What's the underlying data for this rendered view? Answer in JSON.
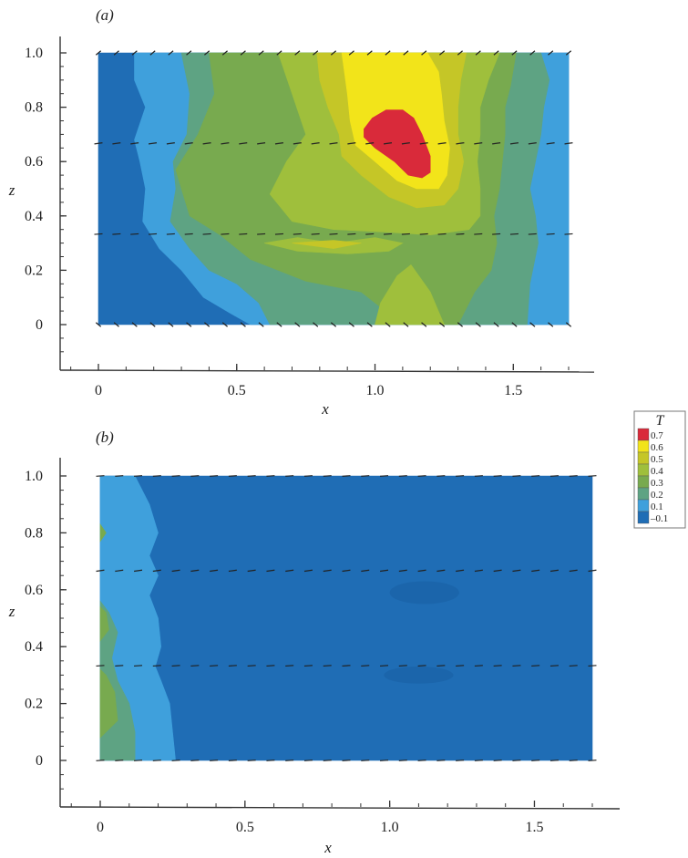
{
  "colors": {
    "c_m01": "#1f6db5",
    "c_01": "#3fa0dc",
    "c_02": "#5ea383",
    "c_03": "#78aa4f",
    "c_04": "#9fbf3c",
    "c_05": "#c5c627",
    "c_06": "#f2e41a",
    "c_07": "#d92a3a",
    "vector": "#222222",
    "axis": "#333333"
  },
  "legend": {
    "title": "T",
    "levels": [
      "0.7",
      "0.6",
      "0.5",
      "0.4",
      "0.3",
      "0.2",
      "0.1",
      "–0.1"
    ],
    "color_keys": [
      "c_07",
      "c_06",
      "c_05",
      "c_04",
      "c_03",
      "c_02",
      "c_01",
      "c_m01"
    ]
  },
  "chart_data": [
    {
      "type": "heatmap",
      "panel_label": "(a)",
      "xlabel": "x",
      "ylabel": "z",
      "xlim": [
        -0.12,
        1.75
      ],
      "ylim": [
        -0.17,
        1.06
      ],
      "xticks": [
        "0",
        "0.5",
        "1.0",
        "1.5"
      ],
      "yticks": [
        "0",
        "0.2",
        "0.4",
        "0.6",
        "0.8",
        "1.0"
      ],
      "xtick_values": [
        0,
        0.5,
        1.0,
        1.5
      ],
      "ytick_values": [
        0,
        0.2,
        0.4,
        0.6,
        0.8,
        1.0
      ],
      "domain": {
        "x": [
          0,
          1.7
        ],
        "z": [
          0,
          1.0
        ]
      },
      "contour_regions": [
        {
          "level": "-0.1",
          "color_key": "c_m01",
          "points": [
            [
              0,
              0
            ],
            [
              1.7,
              0
            ],
            [
              1.7,
              1
            ],
            [
              0,
              1
            ]
          ]
        },
        {
          "level": "0.1",
          "color_key": "c_01",
          "points": [
            [
              0.13,
              1
            ],
            [
              1.7,
              1
            ],
            [
              1.7,
              0
            ],
            [
              0.55,
              0
            ],
            [
              0.48,
              0.04
            ],
            [
              0.38,
              0.1
            ],
            [
              0.3,
              0.2
            ],
            [
              0.22,
              0.28
            ],
            [
              0.16,
              0.38
            ],
            [
              0.17,
              0.5
            ],
            [
              0.15,
              0.6
            ],
            [
              0.13,
              0.68
            ],
            [
              0.17,
              0.8
            ],
            [
              0.13,
              0.9
            ]
          ]
        },
        {
          "level": "0.2",
          "color_key": "c_02",
          "points": [
            [
              0.3,
              1
            ],
            [
              1.6,
              1
            ],
            [
              1.63,
              0.9
            ],
            [
              1.61,
              0.8
            ],
            [
              1.6,
              0.7
            ],
            [
              1.58,
              0.6
            ],
            [
              1.56,
              0.5
            ],
            [
              1.58,
              0.4
            ],
            [
              1.59,
              0.3
            ],
            [
              1.56,
              0.15
            ],
            [
              1.55,
              0
            ],
            [
              0.62,
              0
            ],
            [
              0.58,
              0.08
            ],
            [
              0.5,
              0.15
            ],
            [
              0.4,
              0.2
            ],
            [
              0.33,
              0.28
            ],
            [
              0.26,
              0.38
            ],
            [
              0.28,
              0.5
            ],
            [
              0.27,
              0.6
            ],
            [
              0.32,
              0.7
            ],
            [
              0.33,
              0.85
            ]
          ]
        },
        {
          "level": "0.3",
          "color_key": "c_03",
          "points": [
            [
              0.4,
              1
            ],
            [
              1.51,
              1
            ],
            [
              1.49,
              0.88
            ],
            [
              1.47,
              0.8
            ],
            [
              1.47,
              0.7
            ],
            [
              1.46,
              0.6
            ],
            [
              1.45,
              0.5
            ],
            [
              1.43,
              0.4
            ],
            [
              1.44,
              0.3
            ],
            [
              1.42,
              0.2
            ],
            [
              1.36,
              0.12
            ],
            [
              1.3,
              0
            ],
            [
              1.1,
              0
            ],
            [
              0.95,
              0.12
            ],
            [
              0.75,
              0.16
            ],
            [
              0.55,
              0.24
            ],
            [
              0.44,
              0.33
            ],
            [
              0.33,
              0.4
            ],
            [
              0.3,
              0.5
            ],
            [
              0.28,
              0.57
            ],
            [
              0.36,
              0.7
            ],
            [
              0.42,
              0.85
            ]
          ]
        },
        {
          "level": "0.4",
          "color_key": "c_04",
          "points": [
            [
              0.65,
              1
            ],
            [
              1.45,
              1
            ],
            [
              1.41,
              0.9
            ],
            [
              1.38,
              0.8
            ],
            [
              1.38,
              0.7
            ],
            [
              1.37,
              0.6
            ],
            [
              1.38,
              0.5
            ],
            [
              1.38,
              0.4
            ],
            [
              1.34,
              0.35
            ],
            [
              1.2,
              0.33
            ],
            [
              1.05,
              0.34
            ],
            [
              0.85,
              0.35
            ],
            [
              0.7,
              0.38
            ],
            [
              0.62,
              0.48
            ],
            [
              0.68,
              0.6
            ],
            [
              0.75,
              0.7
            ],
            [
              0.7,
              0.85
            ]
          ]
        },
        {
          "level": "0.4",
          "color_key": "c_04",
          "points": [
            [
              0.6,
              0.3
            ],
            [
              0.72,
              0.32
            ],
            [
              0.85,
              0.3
            ],
            [
              1.0,
              0.32
            ],
            [
              1.1,
              0.3
            ],
            [
              1.05,
              0.27
            ],
            [
              0.9,
              0.26
            ],
            [
              0.72,
              0.27
            ]
          ]
        },
        {
          "level": "0.4",
          "color_key": "c_04",
          "points": [
            [
              1.0,
              0
            ],
            [
              1.25,
              0
            ],
            [
              1.2,
              0.12
            ],
            [
              1.13,
              0.22
            ],
            [
              1.08,
              0.18
            ],
            [
              1.02,
              0.08
            ]
          ]
        },
        {
          "level": "0.5",
          "color_key": "c_05",
          "points": [
            [
              0.79,
              1
            ],
            [
              1.33,
              1
            ],
            [
              1.31,
              0.9
            ],
            [
              1.3,
              0.8
            ],
            [
              1.3,
              0.7
            ],
            [
              1.32,
              0.6
            ],
            [
              1.3,
              0.5
            ],
            [
              1.25,
              0.44
            ],
            [
              1.15,
              0.43
            ],
            [
              1.05,
              0.47
            ],
            [
              0.95,
              0.55
            ],
            [
              0.88,
              0.62
            ],
            [
              0.87,
              0.7
            ],
            [
              0.83,
              0.8
            ],
            [
              0.8,
              0.9
            ]
          ]
        },
        {
          "level": "0.5",
          "color_key": "c_05",
          "points": [
            [
              0.7,
              0.3
            ],
            [
              0.85,
              0.31
            ],
            [
              0.95,
              0.3
            ],
            [
              0.85,
              0.28
            ]
          ]
        },
        {
          "level": "0.6",
          "color_key": "c_06",
          "points": [
            [
              0.88,
              1
            ],
            [
              1.19,
              1
            ],
            [
              1.23,
              0.93
            ],
            [
              1.24,
              0.85
            ],
            [
              1.25,
              0.75
            ],
            [
              1.27,
              0.65
            ],
            [
              1.26,
              0.55
            ],
            [
              1.23,
              0.5
            ],
            [
              1.15,
              0.5
            ],
            [
              1.08,
              0.53
            ],
            [
              1.0,
              0.6
            ],
            [
              0.93,
              0.66
            ],
            [
              0.91,
              0.75
            ],
            [
              0.9,
              0.85
            ]
          ]
        },
        {
          "level": "0.7",
          "color_key": "c_07",
          "points": [
            [
              0.96,
              0.72
            ],
            [
              0.99,
              0.76
            ],
            [
              1.04,
              0.79
            ],
            [
              1.1,
              0.79
            ],
            [
              1.14,
              0.76
            ],
            [
              1.17,
              0.7
            ],
            [
              1.2,
              0.62
            ],
            [
              1.2,
              0.56
            ],
            [
              1.17,
              0.54
            ],
            [
              1.12,
              0.55
            ],
            [
              1.07,
              0.6
            ],
            [
              1.0,
              0.65
            ],
            [
              0.96,
              0.69
            ]
          ]
        }
      ],
      "vector_rows": [
        0.0,
        0.333,
        0.667,
        1.0
      ]
    },
    {
      "type": "heatmap",
      "panel_label": "(b)",
      "xlabel": "x",
      "ylabel": "z",
      "xlim": [
        -0.12,
        1.75
      ],
      "ylim": [
        -0.17,
        1.06
      ],
      "xticks": [
        "0",
        "0.5",
        "1.0",
        "1.5"
      ],
      "yticks": [
        "0",
        "0.2",
        "0.4",
        "0.6",
        "0.8",
        "1.0"
      ],
      "xtick_values": [
        0,
        0.5,
        1.0,
        1.5
      ],
      "ytick_values": [
        0,
        0.2,
        0.4,
        0.6,
        0.8,
        1.0
      ],
      "domain": {
        "x": [
          0,
          1.7
        ],
        "z": [
          0,
          1.0
        ]
      },
      "contour_regions": [
        {
          "level": "-0.1",
          "color_key": "c_m01",
          "points": [
            [
              0,
              0
            ],
            [
              1.7,
              0
            ],
            [
              1.7,
              1
            ],
            [
              0,
              1
            ]
          ]
        },
        {
          "level": "0.1",
          "color_key": "c_01",
          "points": [
            [
              0,
              0
            ],
            [
              0.26,
              0
            ],
            [
              0.25,
              0.1
            ],
            [
              0.24,
              0.2
            ],
            [
              0.21,
              0.28
            ],
            [
              0.19,
              0.33
            ],
            [
              0.21,
              0.4
            ],
            [
              0.2,
              0.5
            ],
            [
              0.17,
              0.58
            ],
            [
              0.2,
              0.65
            ],
            [
              0.17,
              0.72
            ],
            [
              0.2,
              0.8
            ],
            [
              0.17,
              0.9
            ],
            [
              0.12,
              1
            ],
            [
              0,
              1
            ]
          ]
        },
        {
          "level": "0.2",
          "color_key": "c_02",
          "points": [
            [
              0,
              0
            ],
            [
              0.12,
              0
            ],
            [
              0.12,
              0.1
            ],
            [
              0.1,
              0.2
            ],
            [
              0.06,
              0.28
            ],
            [
              0.04,
              0.36
            ],
            [
              0.06,
              0.45
            ],
            [
              0.03,
              0.52
            ],
            [
              0,
              0.56
            ]
          ]
        },
        {
          "level": "0.3",
          "color_key": "c_03",
          "points": [
            [
              0,
              0.08
            ],
            [
              0.06,
              0.14
            ],
            [
              0.05,
              0.24
            ],
            [
              0.02,
              0.3
            ],
            [
              0,
              0.32
            ]
          ]
        },
        {
          "level": "0.3",
          "color_key": "c_03",
          "points": [
            [
              0,
              0.42
            ],
            [
              0.03,
              0.46
            ],
            [
              0.02,
              0.52
            ],
            [
              0,
              0.54
            ]
          ]
        },
        {
          "level": "0.3",
          "color_key": "c_03",
          "points": [
            [
              0,
              0.77
            ],
            [
              0.02,
              0.8
            ],
            [
              0,
              0.83
            ]
          ]
        }
      ],
      "vector_rows": [
        0.0,
        0.333,
        0.667,
        1.0
      ]
    }
  ]
}
